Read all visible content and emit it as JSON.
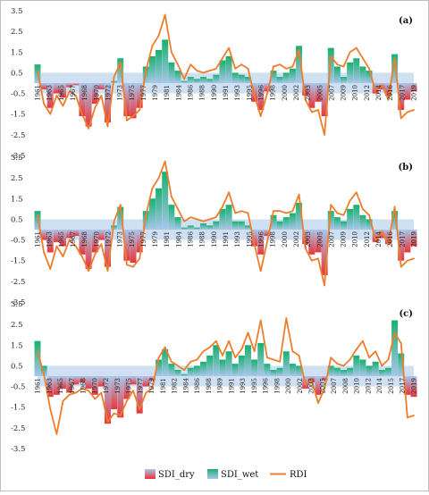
{
  "chart_data": {
    "type": "area",
    "legend": {
      "placement": "bottom",
      "entries": [
        {
          "name": "SDI_dry",
          "color_top": "#a9c6ea",
          "color_bottom": "#e8343a"
        },
        {
          "name": "SDI_wet",
          "color_top": "#a9c6ea",
          "color_bottom": "#18b070"
        },
        {
          "name": "RDI",
          "color": "#ee7d2c"
        }
      ]
    },
    "yticks": [
      "3.5",
      "2.5",
      "1.5",
      "0.5",
      "-0.5",
      "-1.5",
      "-2.5",
      "-3.5"
    ],
    "ylim": [
      -3.5,
      3.5
    ],
    "grid": false,
    "panels": [
      {
        "label": "(a)",
        "xticks": [
          "1961",
          "1963",
          "1965",
          "1967",
          "1968",
          "1970",
          "1972",
          "1973",
          "1975",
          "1977",
          "1979",
          "1981",
          "1984",
          "1986",
          "1988",
          "1990",
          "1991",
          "1993",
          "1995",
          "1996",
          "1998",
          "2000",
          "2002",
          "2003",
          "2005",
          "2007",
          "2009",
          "2010",
          "2012",
          "2014",
          "2016",
          "2017",
          "2019"
        ],
        "x": [
          1961,
          1962,
          1963,
          1964,
          1965,
          1966,
          1967,
          1968,
          1969,
          1970,
          1971,
          1972,
          1973,
          1974,
          1975,
          1976,
          1977,
          1978,
          1979,
          1980,
          1981,
          1982,
          1983,
          1984,
          1985,
          1986,
          1987,
          1988,
          1989,
          1990,
          1991,
          1992,
          1993,
          1994,
          1995,
          1996,
          1997,
          1998,
          1999,
          2000,
          2001,
          2002,
          2003,
          2004,
          2005,
          2006,
          2007,
          2008,
          2009,
          2010,
          2011,
          2012,
          2013,
          2014,
          2015,
          2016,
          2017,
          2018,
          2019,
          2020
        ],
        "sdi": [
          0.9,
          -0.3,
          -1.2,
          -0.5,
          -0.7,
          -0.2,
          -0.1,
          -1.6,
          -2.1,
          -1.0,
          -0.3,
          -1.9,
          0.1,
          1.2,
          -1.6,
          -1.7,
          -1.2,
          0.8,
          1.3,
          1.6,
          2.1,
          1.0,
          0.6,
          0.1,
          0.3,
          0.2,
          0.3,
          0.2,
          0.4,
          1.1,
          1.3,
          0.5,
          0.4,
          0.3,
          -0.9,
          -1.3,
          -0.4,
          0.6,
          0.3,
          0.5,
          0.7,
          1.8,
          -0.6,
          -1.2,
          -0.9,
          -1.6,
          1.7,
          0.8,
          0.3,
          1.0,
          1.2,
          0.8,
          0.6,
          -0.5,
          -0.3,
          -0.6,
          1.4,
          -1.3,
          -0.8,
          -0.4
        ],
        "rdi": [
          0.6,
          -1.0,
          -1.5,
          -0.6,
          -1.1,
          -0.4,
          -0.6,
          -1.5,
          -2.2,
          -1.2,
          -0.6,
          -2.1,
          0.3,
          1.0,
          -1.8,
          -1.6,
          -1.3,
          0.6,
          1.8,
          2.3,
          3.3,
          1.5,
          0.9,
          0.2,
          0.9,
          0.6,
          0.5,
          0.6,
          0.7,
          1.2,
          1.7,
          0.7,
          0.9,
          0.7,
          -0.6,
          -1.6,
          -0.5,
          0.8,
          0.9,
          0.7,
          0.8,
          1.6,
          -0.8,
          -1.4,
          -1.3,
          -2.5,
          1.3,
          0.9,
          0.8,
          1.5,
          1.7,
          1.2,
          0.7,
          -0.4,
          -0.1,
          -0.8,
          1.2,
          -1.7,
          -1.4,
          -1.3
        ]
      },
      {
        "label": "(b)",
        "xticks": [
          "1961",
          "1963",
          "1965",
          "1967",
          "1968",
          "1970",
          "1972",
          "1973",
          "1975",
          "1977",
          "1979",
          "1981",
          "1984",
          "1986",
          "1988",
          "1990",
          "1991",
          "1993",
          "1995",
          "1996",
          "1998",
          "2000",
          "2002",
          "2003",
          "2005",
          "2007",
          "2009",
          "2010",
          "2012",
          "2014",
          "2016",
          "2017",
          "2019"
        ],
        "x": [
          1961,
          1962,
          1963,
          1964,
          1965,
          1966,
          1967,
          1968,
          1969,
          1970,
          1971,
          1972,
          1973,
          1974,
          1975,
          1976,
          1977,
          1978,
          1979,
          1980,
          1981,
          1982,
          1983,
          1984,
          1985,
          1986,
          1987,
          1988,
          1989,
          1990,
          1991,
          1992,
          1993,
          1994,
          1995,
          1996,
          1997,
          1998,
          1999,
          2000,
          2001,
          2002,
          2003,
          2004,
          2005,
          2006,
          2007,
          2008,
          2009,
          2010,
          2011,
          2012,
          2013,
          2014,
          2015,
          2016,
          2017,
          2018,
          2019,
          2020
        ],
        "sdi": [
          0.9,
          -0.5,
          -1.1,
          -0.6,
          -0.8,
          -0.4,
          -0.3,
          -1.2,
          -1.9,
          -1.1,
          -0.5,
          -1.8,
          0.2,
          1.1,
          -1.5,
          -1.6,
          -1.1,
          0.9,
          1.5,
          2.0,
          2.8,
          1.2,
          0.6,
          0.1,
          0.2,
          0.1,
          0.3,
          0.2,
          0.4,
          1.0,
          1.2,
          0.4,
          0.4,
          0.2,
          -0.8,
          -1.2,
          -0.3,
          0.7,
          0.4,
          0.6,
          0.8,
          1.3,
          -0.7,
          -1.2,
          -1.1,
          -2.2,
          0.9,
          0.6,
          0.4,
          1.0,
          1.2,
          0.7,
          0.5,
          -0.6,
          -0.4,
          -0.7,
          0.9,
          -1.5,
          -1.1,
          -0.8
        ],
        "rdi": [
          0.7,
          -1.1,
          -1.9,
          -0.8,
          -1.3,
          -0.5,
          -0.8,
          -1.3,
          -2.0,
          -1.2,
          -0.7,
          -2.0,
          0.4,
          1.2,
          -1.7,
          -1.8,
          -1.4,
          0.7,
          2.0,
          2.5,
          3.3,
          1.6,
          1.0,
          0.4,
          0.6,
          0.5,
          0.4,
          0.5,
          0.6,
          1.1,
          1.8,
          0.8,
          0.9,
          0.8,
          -0.7,
          -2.0,
          -0.6,
          0.9,
          0.9,
          0.8,
          0.9,
          1.7,
          -0.9,
          -1.5,
          -1.4,
          -2.7,
          1.2,
          0.8,
          0.7,
          1.4,
          1.8,
          1.0,
          0.7,
          -0.5,
          -0.1,
          -0.7,
          1.1,
          -1.8,
          -1.5,
          -1.4
        ]
      },
      {
        "label": "(c)",
        "xticks": [
          "1961",
          "1963",
          "1965",
          "1967",
          "1968",
          "1970",
          "1972",
          "1973",
          "1975",
          "1977",
          "1979",
          "1981",
          "1982",
          "1984",
          "1986",
          "1988",
          "1989",
          "1991",
          "1993",
          "1995",
          "1996",
          "1998",
          "2000",
          "2002",
          "2003",
          "2005",
          "2007",
          "2008",
          "2010",
          "2012",
          "2014",
          "2015",
          "2017",
          "2019"
        ],
        "x": [
          1961,
          1962,
          1963,
          1964,
          1965,
          1966,
          1967,
          1968,
          1969,
          1970,
          1971,
          1972,
          1973,
          1974,
          1975,
          1976,
          1977,
          1978,
          1979,
          1980,
          1981,
          1982,
          1983,
          1984,
          1985,
          1986,
          1987,
          1988,
          1989,
          1990,
          1991,
          1992,
          1993,
          1994,
          1995,
          1996,
          1997,
          1998,
          1999,
          2000,
          2001,
          2002,
          2003,
          2004,
          2005,
          2006,
          2007,
          2008,
          2009,
          2010,
          2011,
          2012,
          2013,
          2014,
          2015,
          2016,
          2017,
          2018,
          2019,
          2020
        ],
        "sdi": [
          1.7,
          0.5,
          -1.0,
          -0.9,
          -0.6,
          -0.8,
          -0.4,
          -0.3,
          -0.6,
          -0.9,
          -0.5,
          -2.3,
          -1.6,
          -2.0,
          -1.1,
          -0.4,
          -1.8,
          -0.5,
          -0.2,
          0.8,
          1.3,
          0.6,
          0.3,
          0.1,
          0.4,
          0.5,
          0.7,
          1.0,
          1.5,
          0.8,
          1.2,
          0.6,
          1.0,
          1.5,
          0.8,
          1.6,
          0.6,
          0.3,
          0.4,
          1.2,
          0.6,
          0.5,
          -0.6,
          -0.3,
          -0.9,
          -0.2,
          0.5,
          0.4,
          0.3,
          0.4,
          1.0,
          0.8,
          0.5,
          0.7,
          0.3,
          0.4,
          2.7,
          1.1,
          -0.9,
          -1.0
        ],
        "rdi": [
          1.2,
          0.1,
          -1.6,
          -2.8,
          -1.2,
          -0.9,
          -0.8,
          -0.6,
          -0.7,
          -1.1,
          -0.8,
          -2.2,
          -1.8,
          -1.9,
          -1.2,
          -0.7,
          -1.6,
          -0.8,
          -0.6,
          0.9,
          1.4,
          0.7,
          0.5,
          0.3,
          0.7,
          0.8,
          1.2,
          1.4,
          1.7,
          1.0,
          1.7,
          0.9,
          1.3,
          2.1,
          1.2,
          2.7,
          0.9,
          0.8,
          0.7,
          2.8,
          1.2,
          1.0,
          -0.4,
          -0.2,
          -1.3,
          -0.6,
          0.9,
          0.6,
          0.5,
          0.8,
          1.3,
          1.7,
          0.9,
          1.2,
          0.5,
          0.8,
          2.1,
          1.6,
          -2.0,
          -1.9
        ]
      }
    ]
  }
}
